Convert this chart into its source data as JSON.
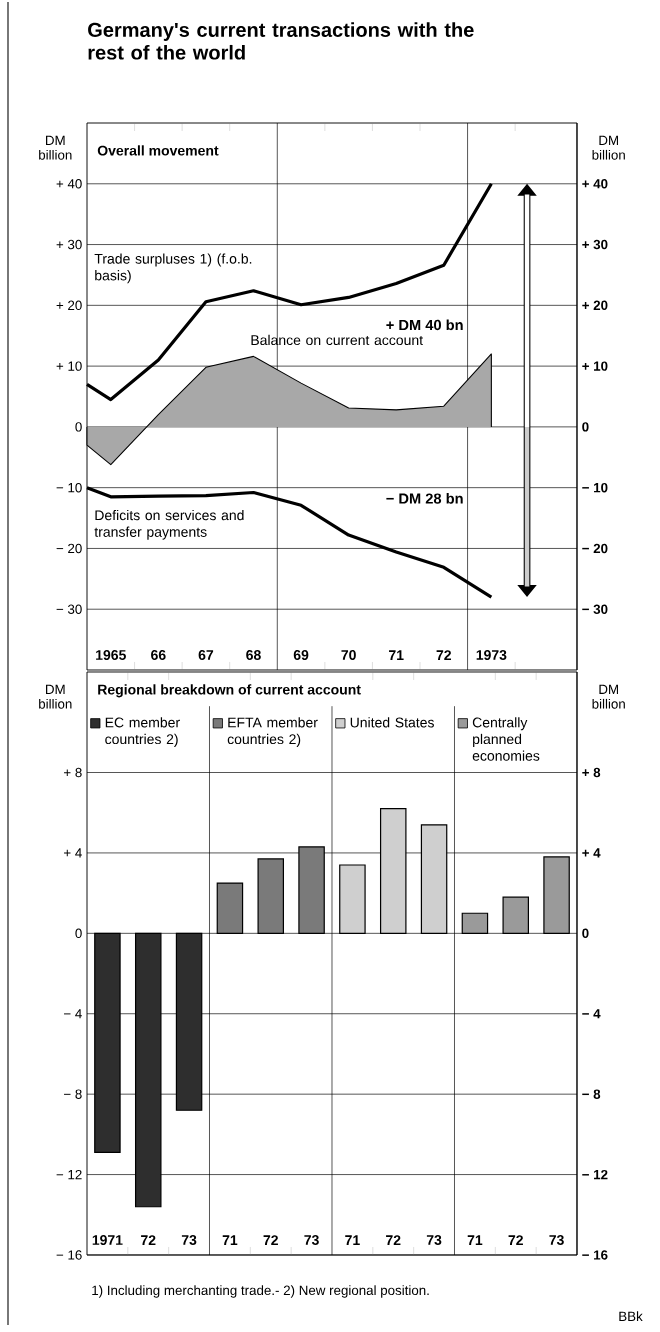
{
  "chart_data": [
    {
      "type": "line",
      "title": "Germany's current transactions with the rest of the world",
      "subtitle": "Overall movement",
      "ylabel": "DM billion",
      "y2label": "DM billion",
      "xlim": [
        1964.5,
        1974.8
      ],
      "xticks": [
        {
          "value": 1965,
          "label": "1965"
        },
        {
          "value": 1966,
          "label": "66"
        },
        {
          "value": 1967,
          "label": "67"
        },
        {
          "value": 1968,
          "label": "68"
        },
        {
          "value": 1969,
          "label": "69"
        },
        {
          "value": 1970,
          "label": "70"
        },
        {
          "value": 1971,
          "label": "71"
        },
        {
          "value": 1972,
          "label": "72"
        },
        {
          "value": 1973,
          "label": "1973"
        },
        {
          "value": 1965.5,
          "label": null
        },
        {
          "value": 1966.5,
          "label": null
        },
        {
          "value": 1967.5,
          "label": null
        },
        {
          "value": 1969.5,
          "label": null
        },
        {
          "value": 1970.5,
          "label": null
        },
        {
          "value": 1971.5,
          "label": null
        },
        {
          "value": 1973.5,
          "label": null
        }
      ],
      "ylim": [
        -40,
        50
      ],
      "yticks": [
        {
          "value": -30,
          "label": "− 30"
        },
        {
          "value": -20,
          "label": "− 20"
        },
        {
          "value": -10,
          "label": "− 10"
        },
        0,
        {
          "value": 10,
          "label": "+ 10"
        },
        {
          "value": 20,
          "label": "+ 20"
        },
        {
          "value": 30,
          "label": "+ 30"
        },
        {
          "value": 40,
          "label": "+ 40"
        }
      ],
      "y2lim": [
        -40,
        50
      ],
      "y2ticks": [
        {
          "value": -30,
          "label": "− 30"
        },
        {
          "value": -20,
          "label": "− 20"
        },
        {
          "value": -10,
          "label": "− 10"
        },
        0,
        {
          "value": 10,
          "label": "+ 10"
        },
        {
          "value": 20,
          "label": "+ 20"
        },
        {
          "value": 30,
          "label": "+ 30"
        },
        {
          "value": 40,
          "label": "+ 40"
        }
      ],
      "grid": "y",
      "ref_lines": [
        {
          "axis": "x",
          "value": 1968.5
        },
        {
          "axis": "x",
          "value": 1972.5
        }
      ],
      "annotations": [
        "+ DM 40 bn",
        "− DM 28 bn"
      ],
      "series": [
        {
          "name": "Trade surpluses 1) (f.o.b. basis)",
          "type": "line",
          "color": "#000000",
          "x": [
            1964.5,
            1965,
            1966,
            1967,
            1968,
            1969,
            1970,
            1971,
            1972,
            1973
          ],
          "values": [
            7,
            4.5,
            11,
            20.6,
            22.4,
            20.1,
            21.3,
            23.6,
            26.6,
            40
          ]
        },
        {
          "name": "Balance on current account",
          "type": "area",
          "color": "#a8a8a8",
          "x": [
            1964.5,
            1965,
            1966,
            1967,
            1968,
            1969,
            1970,
            1971,
            1972,
            1973
          ],
          "values": [
            -3,
            -6.2,
            2,
            9.8,
            11.6,
            7.2,
            3.1,
            2.8,
            3.4,
            12
          ]
        },
        {
          "name": "Deficits on services and transfer payments",
          "type": "line",
          "color": "#000000",
          "x": [
            1964.5,
            1965,
            1966,
            1967,
            1968,
            1969,
            1970,
            1971,
            1972,
            1973
          ],
          "values": [
            -10,
            -11.5,
            -11.4,
            -11.3,
            -10.8,
            -12.9,
            -17.8,
            -20.6,
            -23.1,
            -28
          ]
        }
      ]
    },
    {
      "type": "bar",
      "title": "Regional breakdown of current account",
      "ylabel": "DM billion",
      "y2label": "DM billion",
      "categories": [
        "1971",
        "72",
        "73",
        "71",
        "72",
        "73",
        "71",
        "72",
        "73",
        "71",
        "72",
        "73"
      ],
      "ylim": [
        -16,
        13
      ],
      "yticks": [
        {
          "value": -16,
          "label": "− 16"
        },
        {
          "value": -12,
          "label": "− 12"
        },
        {
          "value": -8,
          "label": "− 8"
        },
        {
          "value": -4,
          "label": "− 4"
        },
        0,
        {
          "value": 4,
          "label": "+ 4"
        },
        {
          "value": 8,
          "label": "+ 8"
        }
      ],
      "y2lim": [
        -16,
        13
      ],
      "y2ticks": [
        {
          "value": -16,
          "label": "− 16"
        },
        {
          "value": -12,
          "label": "− 12"
        },
        {
          "value": -8,
          "label": "− 8"
        },
        {
          "value": -4,
          "label": "− 4"
        },
        0,
        {
          "value": 4,
          "label": "+ 4"
        },
        {
          "value": 8,
          "label": "+ 8"
        }
      ],
      "grid": "y",
      "legend": "top",
      "annotations": [
        "1) Including merchanting trade.- 2) New regional position.",
        "BBk"
      ],
      "series": [
        {
          "name": "EC member countries 2)",
          "color": "#2e2e2e",
          "values": [
            -10.9,
            -13.6,
            -8.8,
            null,
            null,
            null,
            null,
            null,
            null,
            null,
            null,
            null
          ]
        },
        {
          "name": "EFTA member countries 2)",
          "color": "#7a7a7a",
          "values": [
            null,
            null,
            null,
            2.5,
            3.7,
            4.3,
            null,
            null,
            null,
            null,
            null,
            null
          ]
        },
        {
          "name": "United States",
          "color": "#cfcfcf",
          "values": [
            null,
            null,
            null,
            null,
            null,
            null,
            3.4,
            6.2,
            5.4,
            null,
            null,
            null
          ]
        },
        {
          "name": "Centrally planned economies",
          "color": "#9a9a9a",
          "values": [
            null,
            null,
            null,
            null,
            null,
            null,
            null,
            null,
            null,
            1.0,
            1.8,
            3.8
          ]
        }
      ]
    }
  ]
}
